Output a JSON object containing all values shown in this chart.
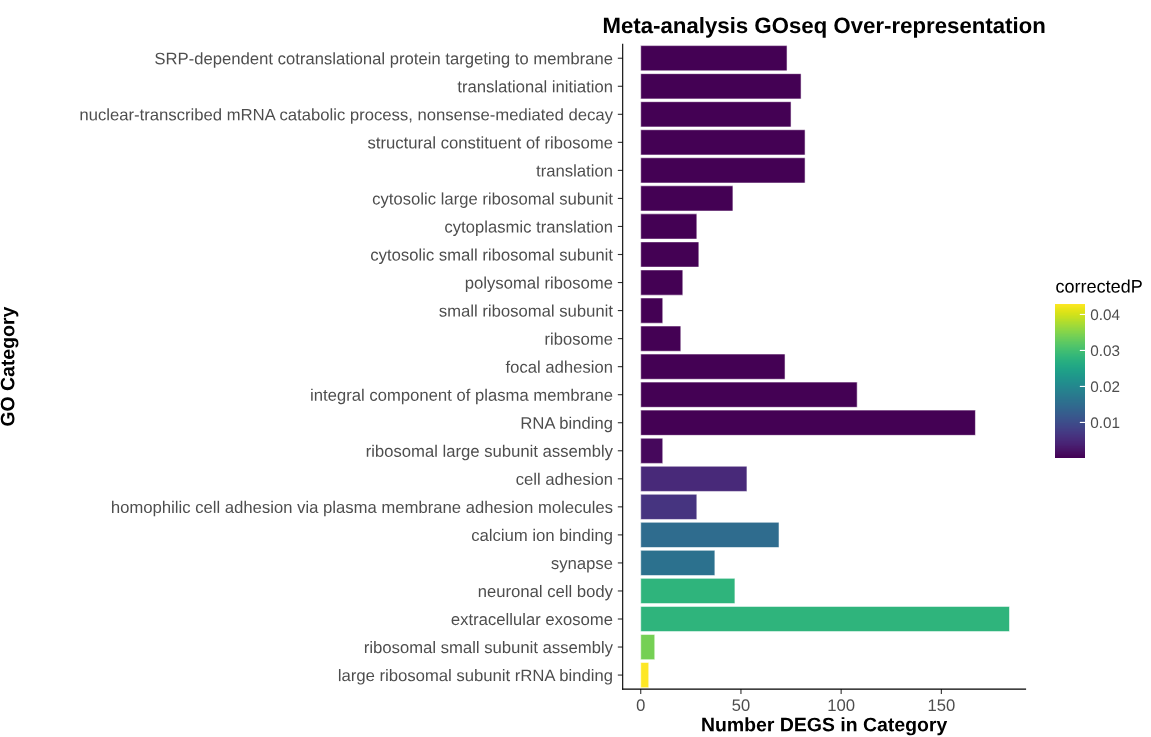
{
  "chart_data": {
    "type": "bar",
    "orientation": "horizontal",
    "title": "Meta-analysis GOseq Over-representation",
    "xlabel": "Number DEGS in Category",
    "ylabel": "GO Category",
    "clabel": "correctedP",
    "categories": [
      "SRP-dependent cotranslational protein targeting to membrane",
      "translational initiation",
      "nuclear-transcribed mRNA catabolic process, nonsense-mediated decay",
      "structural constituent of ribosome",
      "translation",
      "cytosolic large ribosomal subunit",
      "cytoplasmic translation",
      "cytosolic small ribosomal subunit",
      "polysomal ribosome",
      "small ribosomal subunit",
      "ribosome",
      "focal adhesion",
      "integral component of plasma membrane",
      "RNA binding",
      "ribosomal large subunit assembly",
      "cell adhesion",
      "homophilic cell adhesion via plasma membrane adhesion molecules",
      "calcium ion binding",
      "synapse",
      "neuronal cell body",
      "extracellular exosome",
      "ribosomal small subunit assembly",
      "large ribosomal subunit rRNA binding"
    ],
    "values": [
      73,
      80,
      75,
      82,
      82,
      46,
      28,
      29,
      21,
      11,
      20,
      72,
      108,
      167,
      11,
      53,
      28,
      69,
      37,
      47,
      184,
      7,
      4
    ],
    "cvalues": [
      0,
      0,
      0,
      0,
      0,
      0,
      0,
      0,
      0,
      0,
      0,
      0,
      0,
      0,
      0.001,
      0.005,
      0.0065,
      0.015,
      0.016,
      0.028,
      0.028,
      0.034,
      0.043
    ],
    "clim": [
      0,
      0.043
    ],
    "cticks": [
      0.01,
      0.02,
      0.03,
      0.04
    ],
    "xlim": [
      -9,
      192
    ],
    "xticks": [
      0,
      50,
      100,
      150
    ],
    "grid": false,
    "legend": false
  }
}
